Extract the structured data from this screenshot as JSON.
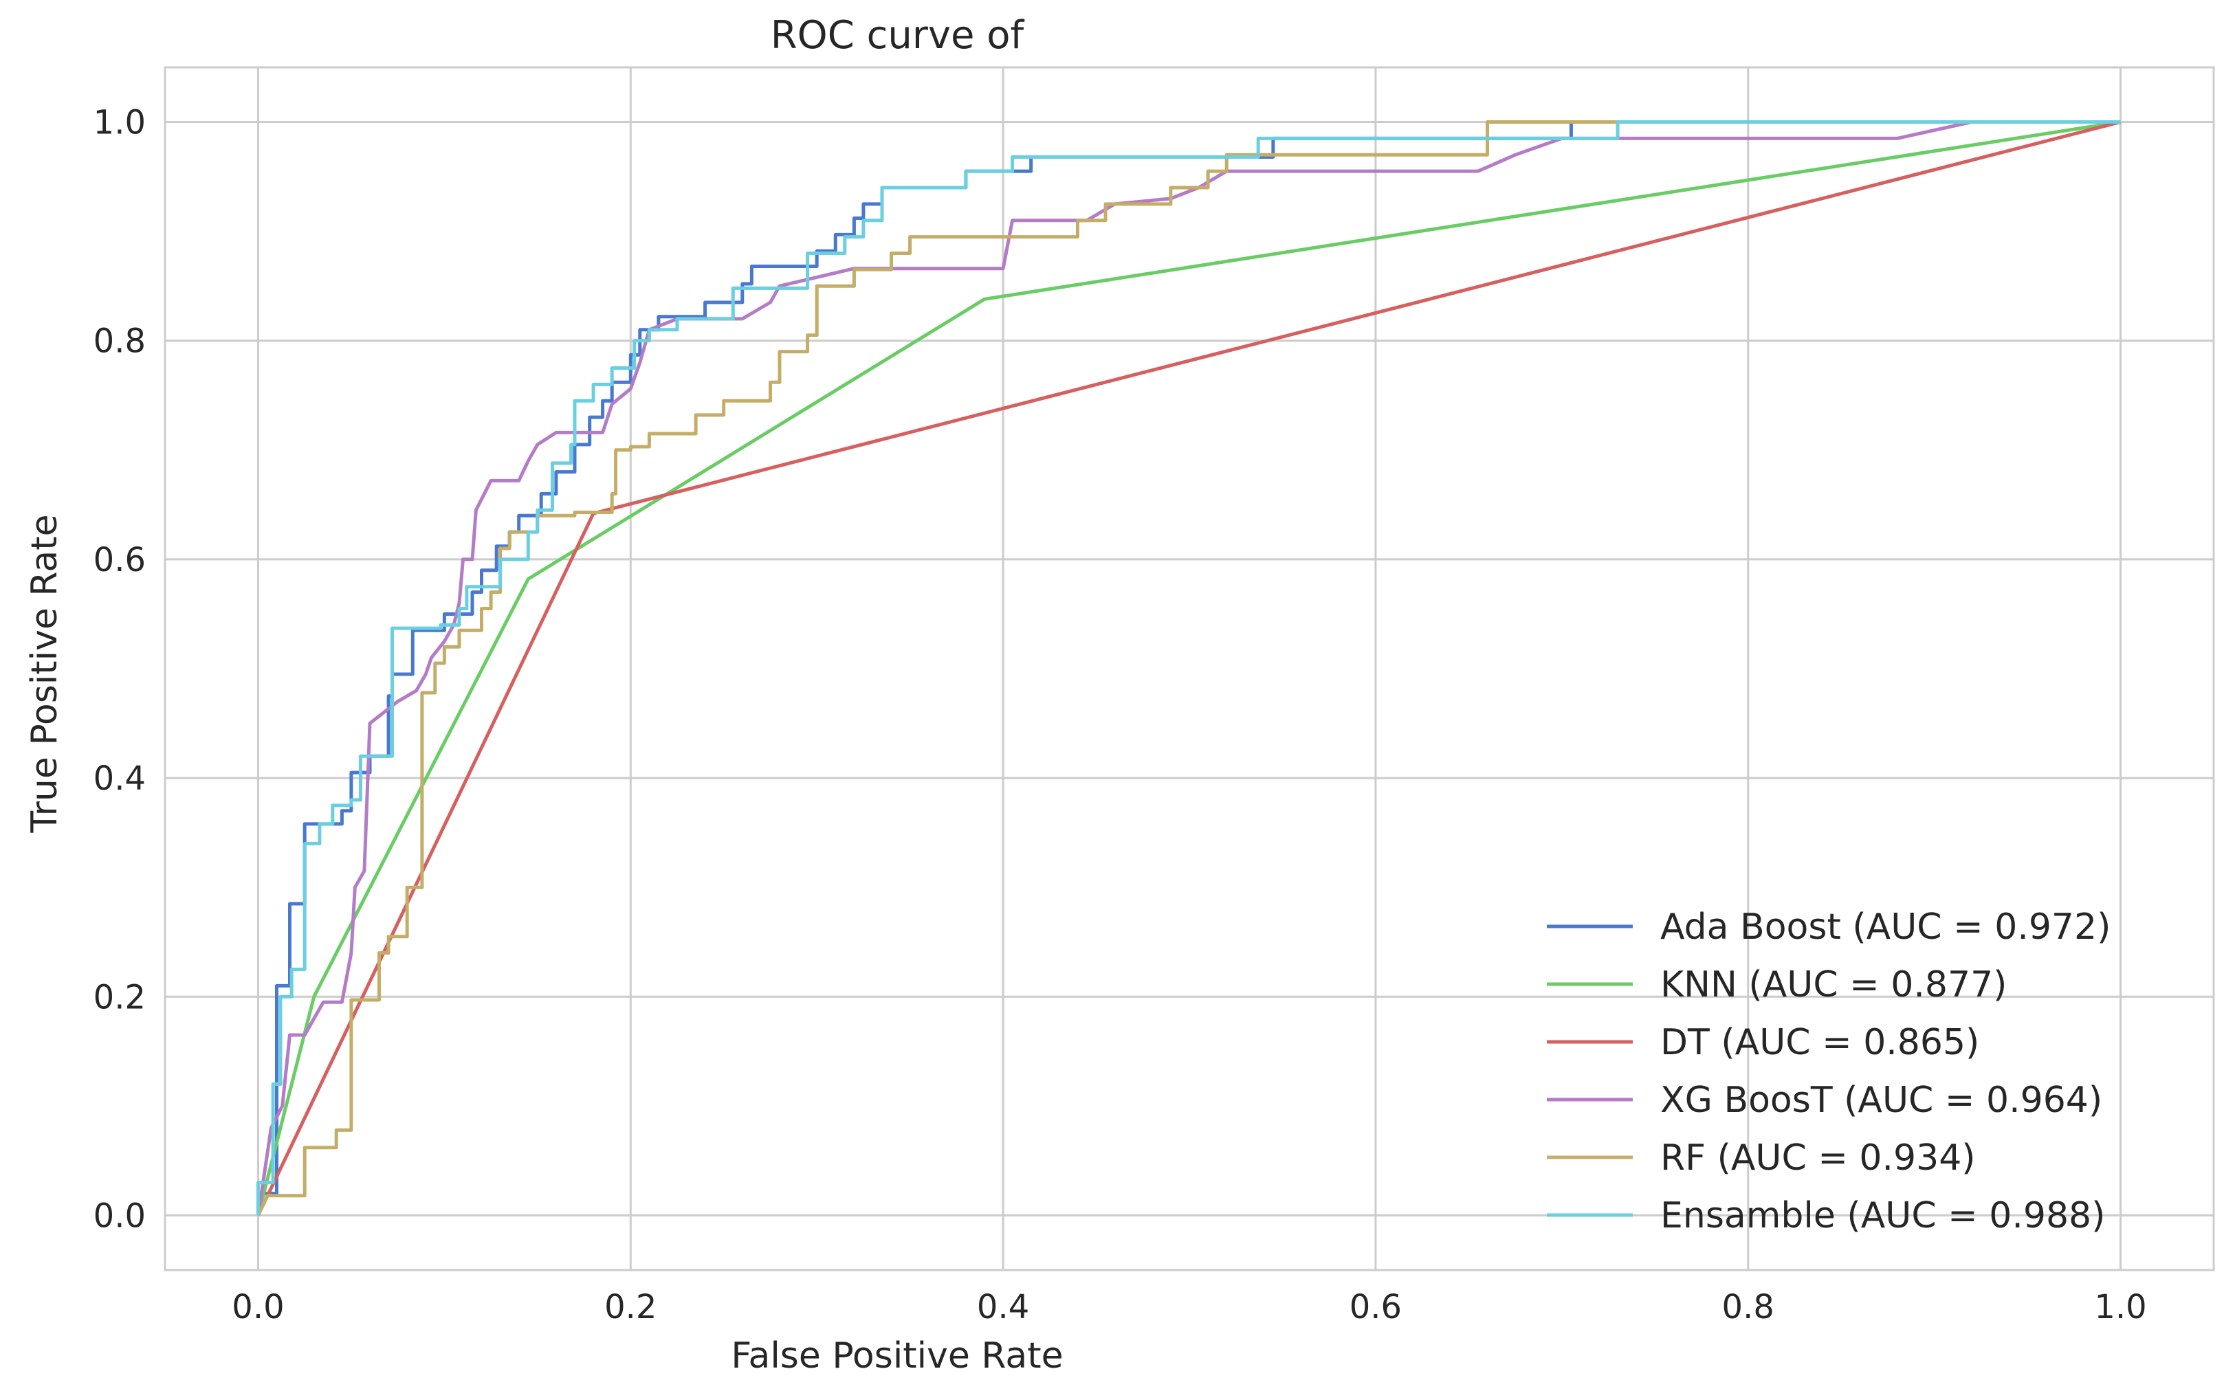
{
  "chart_data": {
    "type": "line",
    "title": "ROC curve of",
    "xlabel": "False Positive Rate",
    "ylabel": "True Positive Rate",
    "xlim": [
      -0.05,
      1.05
    ],
    "ylim": [
      -0.05,
      1.05
    ],
    "xticks": [
      0.0,
      0.2,
      0.4,
      0.6,
      0.8,
      1.0
    ],
    "yticks": [
      0.0,
      0.2,
      0.4,
      0.6,
      0.8,
      1.0
    ],
    "xtick_labels": [
      "0.0",
      "0.2",
      "0.4",
      "0.6",
      "0.8",
      "1.0"
    ],
    "ytick_labels": [
      "0.0",
      "0.2",
      "0.4",
      "0.6",
      "0.8",
      "1.0"
    ],
    "grid": true,
    "legend_position": "lower-right",
    "series": [
      {
        "name": "Ada Boost (AUC = 0.972)",
        "color": "#4878cf",
        "points": [
          [
            0,
            0
          ],
          [
            0,
            0.02
          ],
          [
            0.01,
            0.02
          ],
          [
            0.01,
            0.21
          ],
          [
            0.017,
            0.21
          ],
          [
            0.017,
            0.285
          ],
          [
            0.025,
            0.285
          ],
          [
            0.025,
            0.358
          ],
          [
            0.045,
            0.358
          ],
          [
            0.045,
            0.37
          ],
          [
            0.05,
            0.37
          ],
          [
            0.05,
            0.405
          ],
          [
            0.06,
            0.405
          ],
          [
            0.06,
            0.42
          ],
          [
            0.07,
            0.42
          ],
          [
            0.07,
            0.475
          ],
          [
            0.072,
            0.475
          ],
          [
            0.072,
            0.495
          ],
          [
            0.083,
            0.495
          ],
          [
            0.083,
            0.535
          ],
          [
            0.1,
            0.535
          ],
          [
            0.1,
            0.55
          ],
          [
            0.115,
            0.55
          ],
          [
            0.115,
            0.57
          ],
          [
            0.12,
            0.57
          ],
          [
            0.12,
            0.59
          ],
          [
            0.128,
            0.59
          ],
          [
            0.128,
            0.612
          ],
          [
            0.135,
            0.612
          ],
          [
            0.135,
            0.625
          ],
          [
            0.14,
            0.625
          ],
          [
            0.14,
            0.64
          ],
          [
            0.152,
            0.64
          ],
          [
            0.152,
            0.66
          ],
          [
            0.16,
            0.66
          ],
          [
            0.16,
            0.68
          ],
          [
            0.17,
            0.68
          ],
          [
            0.17,
            0.705
          ],
          [
            0.178,
            0.705
          ],
          [
            0.178,
            0.73
          ],
          [
            0.185,
            0.73
          ],
          [
            0.185,
            0.745
          ],
          [
            0.19,
            0.745
          ],
          [
            0.19,
            0.762
          ],
          [
            0.2,
            0.762
          ],
          [
            0.2,
            0.787
          ],
          [
            0.205,
            0.787
          ],
          [
            0.205,
            0.81
          ],
          [
            0.215,
            0.81
          ],
          [
            0.215,
            0.822
          ],
          [
            0.24,
            0.822
          ],
          [
            0.24,
            0.835
          ],
          [
            0.26,
            0.835
          ],
          [
            0.26,
            0.852
          ],
          [
            0.265,
            0.852
          ],
          [
            0.265,
            0.868
          ],
          [
            0.3,
            0.868
          ],
          [
            0.3,
            0.882
          ],
          [
            0.31,
            0.882
          ],
          [
            0.31,
            0.897
          ],
          [
            0.32,
            0.897
          ],
          [
            0.32,
            0.912
          ],
          [
            0.325,
            0.912
          ],
          [
            0.325,
            0.925
          ],
          [
            0.335,
            0.925
          ],
          [
            0.335,
            0.94
          ],
          [
            0.38,
            0.94
          ],
          [
            0.38,
            0.955
          ],
          [
            0.415,
            0.955
          ],
          [
            0.415,
            0.968
          ],
          [
            0.545,
            0.968
          ],
          [
            0.545,
            0.985
          ],
          [
            0.705,
            0.985
          ],
          [
            0.705,
            1.0
          ],
          [
            1.0,
            1.0
          ]
        ]
      },
      {
        "name": "KNN (AUC = 0.877)",
        "color": "#6acc65",
        "points": [
          [
            0,
            0
          ],
          [
            0.03,
            0.2
          ],
          [
            0.145,
            0.582
          ],
          [
            0.39,
            0.838
          ],
          [
            1.0,
            1.0
          ]
        ]
      },
      {
        "name": "DT (AUC = 0.865)",
        "color": "#d65f5f",
        "points": [
          [
            0,
            0
          ],
          [
            0.18,
            0.642
          ],
          [
            1.0,
            1.0
          ]
        ]
      },
      {
        "name": "XG BoosT (AUC = 0.964)",
        "color": "#b47cc7",
        "points": [
          [
            0,
            0
          ],
          [
            0.007,
            0.08
          ],
          [
            0.013,
            0.1
          ],
          [
            0.017,
            0.165
          ],
          [
            0.025,
            0.165
          ],
          [
            0.03,
            0.18
          ],
          [
            0.035,
            0.195
          ],
          [
            0.045,
            0.195
          ],
          [
            0.05,
            0.24
          ],
          [
            0.052,
            0.3
          ],
          [
            0.057,
            0.315
          ],
          [
            0.06,
            0.45
          ],
          [
            0.075,
            0.47
          ],
          [
            0.085,
            0.48
          ],
          [
            0.09,
            0.495
          ],
          [
            0.093,
            0.51
          ],
          [
            0.1,
            0.525
          ],
          [
            0.105,
            0.54
          ],
          [
            0.108,
            0.56
          ],
          [
            0.11,
            0.6
          ],
          [
            0.115,
            0.6
          ],
          [
            0.117,
            0.645
          ],
          [
            0.125,
            0.672
          ],
          [
            0.14,
            0.672
          ],
          [
            0.145,
            0.69
          ],
          [
            0.15,
            0.705
          ],
          [
            0.16,
            0.716
          ],
          [
            0.185,
            0.716
          ],
          [
            0.19,
            0.742
          ],
          [
            0.2,
            0.756
          ],
          [
            0.205,
            0.78
          ],
          [
            0.21,
            0.81
          ],
          [
            0.225,
            0.82
          ],
          [
            0.26,
            0.82
          ],
          [
            0.275,
            0.835
          ],
          [
            0.28,
            0.85
          ],
          [
            0.32,
            0.866
          ],
          [
            0.4,
            0.866
          ],
          [
            0.405,
            0.91
          ],
          [
            0.445,
            0.91
          ],
          [
            0.46,
            0.925
          ],
          [
            0.49,
            0.93
          ],
          [
            0.505,
            0.94
          ],
          [
            0.52,
            0.955
          ],
          [
            0.655,
            0.955
          ],
          [
            0.675,
            0.97
          ],
          [
            0.7,
            0.985
          ],
          [
            0.88,
            0.985
          ],
          [
            0.92,
            1.0
          ],
          [
            1.0,
            1.0
          ]
        ]
      },
      {
        "name": "RF (AUC = 0.934)",
        "color": "#c4ad66",
        "points": [
          [
            0,
            0
          ],
          [
            0.005,
            0.018
          ],
          [
            0.025,
            0.018
          ],
          [
            0.025,
            0.062
          ],
          [
            0.042,
            0.062
          ],
          [
            0.042,
            0.078
          ],
          [
            0.05,
            0.078
          ],
          [
            0.05,
            0.197
          ],
          [
            0.065,
            0.197
          ],
          [
            0.065,
            0.24
          ],
          [
            0.07,
            0.24
          ],
          [
            0.07,
            0.255
          ],
          [
            0.08,
            0.255
          ],
          [
            0.08,
            0.3
          ],
          [
            0.088,
            0.3
          ],
          [
            0.088,
            0.478
          ],
          [
            0.095,
            0.478
          ],
          [
            0.095,
            0.505
          ],
          [
            0.1,
            0.505
          ],
          [
            0.1,
            0.52
          ],
          [
            0.108,
            0.52
          ],
          [
            0.108,
            0.535
          ],
          [
            0.12,
            0.535
          ],
          [
            0.12,
            0.555
          ],
          [
            0.125,
            0.555
          ],
          [
            0.125,
            0.57
          ],
          [
            0.13,
            0.57
          ],
          [
            0.13,
            0.61
          ],
          [
            0.135,
            0.61
          ],
          [
            0.135,
            0.625
          ],
          [
            0.15,
            0.625
          ],
          [
            0.15,
            0.64
          ],
          [
            0.17,
            0.64
          ],
          [
            0.17,
            0.643
          ],
          [
            0.19,
            0.643
          ],
          [
            0.19,
            0.66
          ],
          [
            0.192,
            0.66
          ],
          [
            0.192,
            0.7
          ],
          [
            0.2,
            0.7
          ],
          [
            0.2,
            0.703
          ],
          [
            0.21,
            0.703
          ],
          [
            0.21,
            0.715
          ],
          [
            0.235,
            0.715
          ],
          [
            0.235,
            0.732
          ],
          [
            0.25,
            0.732
          ],
          [
            0.25,
            0.745
          ],
          [
            0.275,
            0.745
          ],
          [
            0.275,
            0.762
          ],
          [
            0.28,
            0.762
          ],
          [
            0.28,
            0.79
          ],
          [
            0.295,
            0.79
          ],
          [
            0.295,
            0.805
          ],
          [
            0.3,
            0.805
          ],
          [
            0.3,
            0.85
          ],
          [
            0.32,
            0.85
          ],
          [
            0.32,
            0.865
          ],
          [
            0.34,
            0.865
          ],
          [
            0.34,
            0.88
          ],
          [
            0.35,
            0.88
          ],
          [
            0.35,
            0.895
          ],
          [
            0.44,
            0.895
          ],
          [
            0.44,
            0.91
          ],
          [
            0.455,
            0.91
          ],
          [
            0.455,
            0.925
          ],
          [
            0.49,
            0.925
          ],
          [
            0.49,
            0.94
          ],
          [
            0.51,
            0.94
          ],
          [
            0.51,
            0.955
          ],
          [
            0.52,
            0.955
          ],
          [
            0.52,
            0.97
          ],
          [
            0.66,
            0.97
          ],
          [
            0.66,
            0.985
          ],
          [
            0.66,
            1.0
          ],
          [
            0.73,
            1.0
          ],
          [
            1.0,
            1.0
          ]
        ]
      },
      {
        "name": "Ensamble (AUC = 0.988)",
        "color": "#6acfe0",
        "points": [
          [
            0,
            0
          ],
          [
            0,
            0.03
          ],
          [
            0.008,
            0.03
          ],
          [
            0.008,
            0.12
          ],
          [
            0.012,
            0.12
          ],
          [
            0.012,
            0.2
          ],
          [
            0.018,
            0.2
          ],
          [
            0.018,
            0.225
          ],
          [
            0.025,
            0.225
          ],
          [
            0.025,
            0.34
          ],
          [
            0.033,
            0.34
          ],
          [
            0.033,
            0.358
          ],
          [
            0.04,
            0.358
          ],
          [
            0.04,
            0.375
          ],
          [
            0.05,
            0.375
          ],
          [
            0.05,
            0.38
          ],
          [
            0.055,
            0.38
          ],
          [
            0.055,
            0.42
          ],
          [
            0.072,
            0.42
          ],
          [
            0.072,
            0.537
          ],
          [
            0.098,
            0.537
          ],
          [
            0.098,
            0.54
          ],
          [
            0.108,
            0.54
          ],
          [
            0.108,
            0.555
          ],
          [
            0.112,
            0.555
          ],
          [
            0.112,
            0.575
          ],
          [
            0.13,
            0.575
          ],
          [
            0.13,
            0.6
          ],
          [
            0.145,
            0.6
          ],
          [
            0.145,
            0.625
          ],
          [
            0.15,
            0.625
          ],
          [
            0.15,
            0.645
          ],
          [
            0.158,
            0.645
          ],
          [
            0.158,
            0.688
          ],
          [
            0.168,
            0.688
          ],
          [
            0.168,
            0.705
          ],
          [
            0.17,
            0.705
          ],
          [
            0.17,
            0.745
          ],
          [
            0.18,
            0.745
          ],
          [
            0.18,
            0.76
          ],
          [
            0.19,
            0.76
          ],
          [
            0.19,
            0.775
          ],
          [
            0.202,
            0.775
          ],
          [
            0.202,
            0.8
          ],
          [
            0.21,
            0.8
          ],
          [
            0.21,
            0.81
          ],
          [
            0.225,
            0.81
          ],
          [
            0.225,
            0.82
          ],
          [
            0.255,
            0.82
          ],
          [
            0.255,
            0.848
          ],
          [
            0.295,
            0.848
          ],
          [
            0.295,
            0.88
          ],
          [
            0.315,
            0.88
          ],
          [
            0.315,
            0.895
          ],
          [
            0.325,
            0.895
          ],
          [
            0.325,
            0.91
          ],
          [
            0.335,
            0.91
          ],
          [
            0.335,
            0.94
          ],
          [
            0.38,
            0.94
          ],
          [
            0.38,
            0.955
          ],
          [
            0.405,
            0.955
          ],
          [
            0.405,
            0.968
          ],
          [
            0.537,
            0.968
          ],
          [
            0.537,
            0.985
          ],
          [
            0.73,
            0.985
          ],
          [
            0.73,
            1.0
          ],
          [
            1.0,
            1.0
          ]
        ]
      }
    ]
  }
}
